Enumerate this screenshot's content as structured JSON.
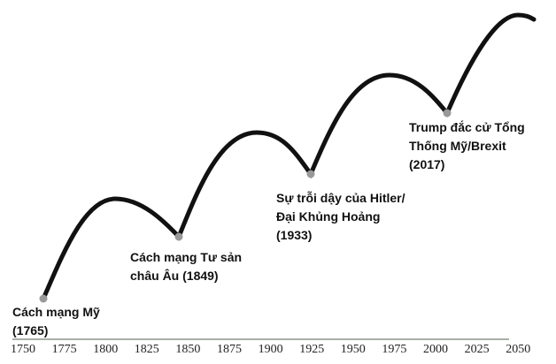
{
  "axis": {
    "ticks": [
      "1750",
      "1775",
      "1800",
      "1825",
      "1850",
      "1875",
      "1900",
      "1925",
      "1950",
      "1975",
      "2000",
      "2025",
      "2050"
    ]
  },
  "events": [
    {
      "line1": "Cách mạng Mỹ",
      "line2": "(1765)"
    },
    {
      "line1": "Cách mạng Tư sản",
      "line2": "châu Âu (1849)"
    },
    {
      "line1": "Sự trỗi dậy của Hitler/",
      "line2": "Đại Khủng Hoảng",
      "line3": "(1933)"
    },
    {
      "line1": "Trump đắc cử Tổng",
      "line2": "Thống Mỹ/Brexit",
      "line3": "(2017)"
    }
  ],
  "colors": {
    "curve": "#111111",
    "marker": "#999999",
    "axis": "#a8b0a8"
  }
}
